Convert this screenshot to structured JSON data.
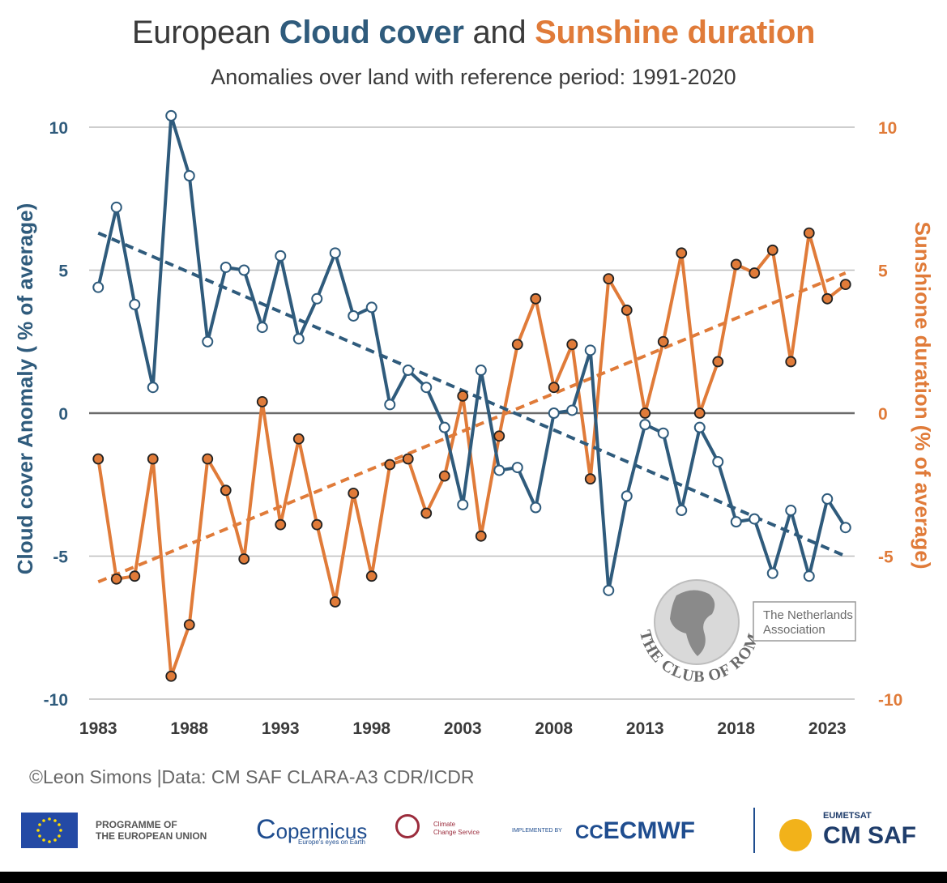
{
  "header": {
    "title_prefix": "European ",
    "title_series1": "Cloud cover",
    "title_mid": " and ",
    "title_series2": "Sunshine duration",
    "subtitle": "Anomalies over land with reference period: 1991-2020"
  },
  "colors": {
    "cloud": "#2f5b7c",
    "sunshine": "#e07b39",
    "grid": "#bdbdbd",
    "zero": "#6b6b6b"
  },
  "chart_data": {
    "type": "line",
    "x": [
      1983,
      1984,
      1985,
      1986,
      1987,
      1988,
      1989,
      1990,
      1991,
      1992,
      1993,
      1994,
      1995,
      1996,
      1997,
      1998,
      1999,
      2000,
      2001,
      2002,
      2003,
      2004,
      2005,
      2006,
      2007,
      2008,
      2009,
      2010,
      2011,
      2012,
      2013,
      2014,
      2015,
      2016,
      2017,
      2018,
      2019,
      2020,
      2021,
      2022,
      2023,
      2024
    ],
    "xlim": [
      1982.5,
      2024.5
    ],
    "xticks": [
      1983,
      1988,
      1993,
      1998,
      2003,
      2008,
      2013,
      2018,
      2023
    ],
    "ylim": [
      -10,
      10
    ],
    "yticks": [
      -10,
      -5,
      0,
      5,
      10
    ],
    "y2lim": [
      -10,
      10
    ],
    "y2ticks": [
      -10,
      -5,
      0,
      5,
      10
    ],
    "ylabel": "Cloud cover Anomaly ( % of average)",
    "y2label": "Sunshione duration (% of average)",
    "grid": true,
    "series": [
      {
        "name": "Cloud cover",
        "axis": "left",
        "values": [
          4.4,
          7.2,
          3.8,
          0.9,
          10.4,
          8.3,
          2.5,
          5.1,
          5.0,
          3.0,
          5.5,
          2.6,
          4.0,
          5.6,
          3.4,
          3.7,
          0.3,
          1.5,
          0.9,
          -0.5,
          -3.2,
          1.5,
          -2.0,
          -1.9,
          -3.3,
          0.0,
          0.1,
          2.2,
          -6.2,
          -2.9,
          -0.4,
          -0.7,
          -3.4,
          -0.5,
          -1.7,
          -3.8,
          -3.7,
          -5.6,
          -3.4,
          -5.7,
          -3.0,
          -4.0
        ],
        "trend": [
          6.3,
          -5.0
        ]
      },
      {
        "name": "Sunshine duration",
        "axis": "right",
        "values": [
          -1.6,
          -5.8,
          -5.7,
          -1.6,
          -9.2,
          -7.4,
          -1.6,
          -2.7,
          -5.1,
          0.4,
          -3.9,
          -0.9,
          -3.9,
          -6.6,
          -2.8,
          -5.7,
          -1.8,
          -1.6,
          -3.5,
          -2.2,
          0.6,
          -4.3,
          -0.8,
          2.4,
          4.0,
          0.9,
          2.4,
          -2.3,
          4.7,
          3.6,
          0.0,
          2.5,
          5.6,
          0.0,
          1.8,
          5.2,
          4.9,
          5.7,
          1.8,
          6.3,
          4.0,
          4.5
        ],
        "trend": [
          -5.9,
          4.9
        ]
      }
    ]
  },
  "watermark": {
    "org": "THE CLUB OF ROME",
    "box_line1": "The Netherlands",
    "box_line2": "Association"
  },
  "footer": {
    "credit": "©Leon Simons  |Data: CM SAF CLARA-A3 CDR/ICDR",
    "eu_line1": "PROGRAMME OF",
    "eu_line2": "THE EUROPEAN UNION",
    "copernicus": "opernicus",
    "copernicus_c": "C",
    "copernicus_tag": "Europe's eyes on Earth",
    "ccs_line1": "Climate",
    "ccs_line2": "Change Service",
    "implemented_by": "IMPLEMENTED BY",
    "ecmwf": "ECMWF",
    "eumetsat": "EUMETSAT",
    "cmsaf": "CM SAF"
  }
}
